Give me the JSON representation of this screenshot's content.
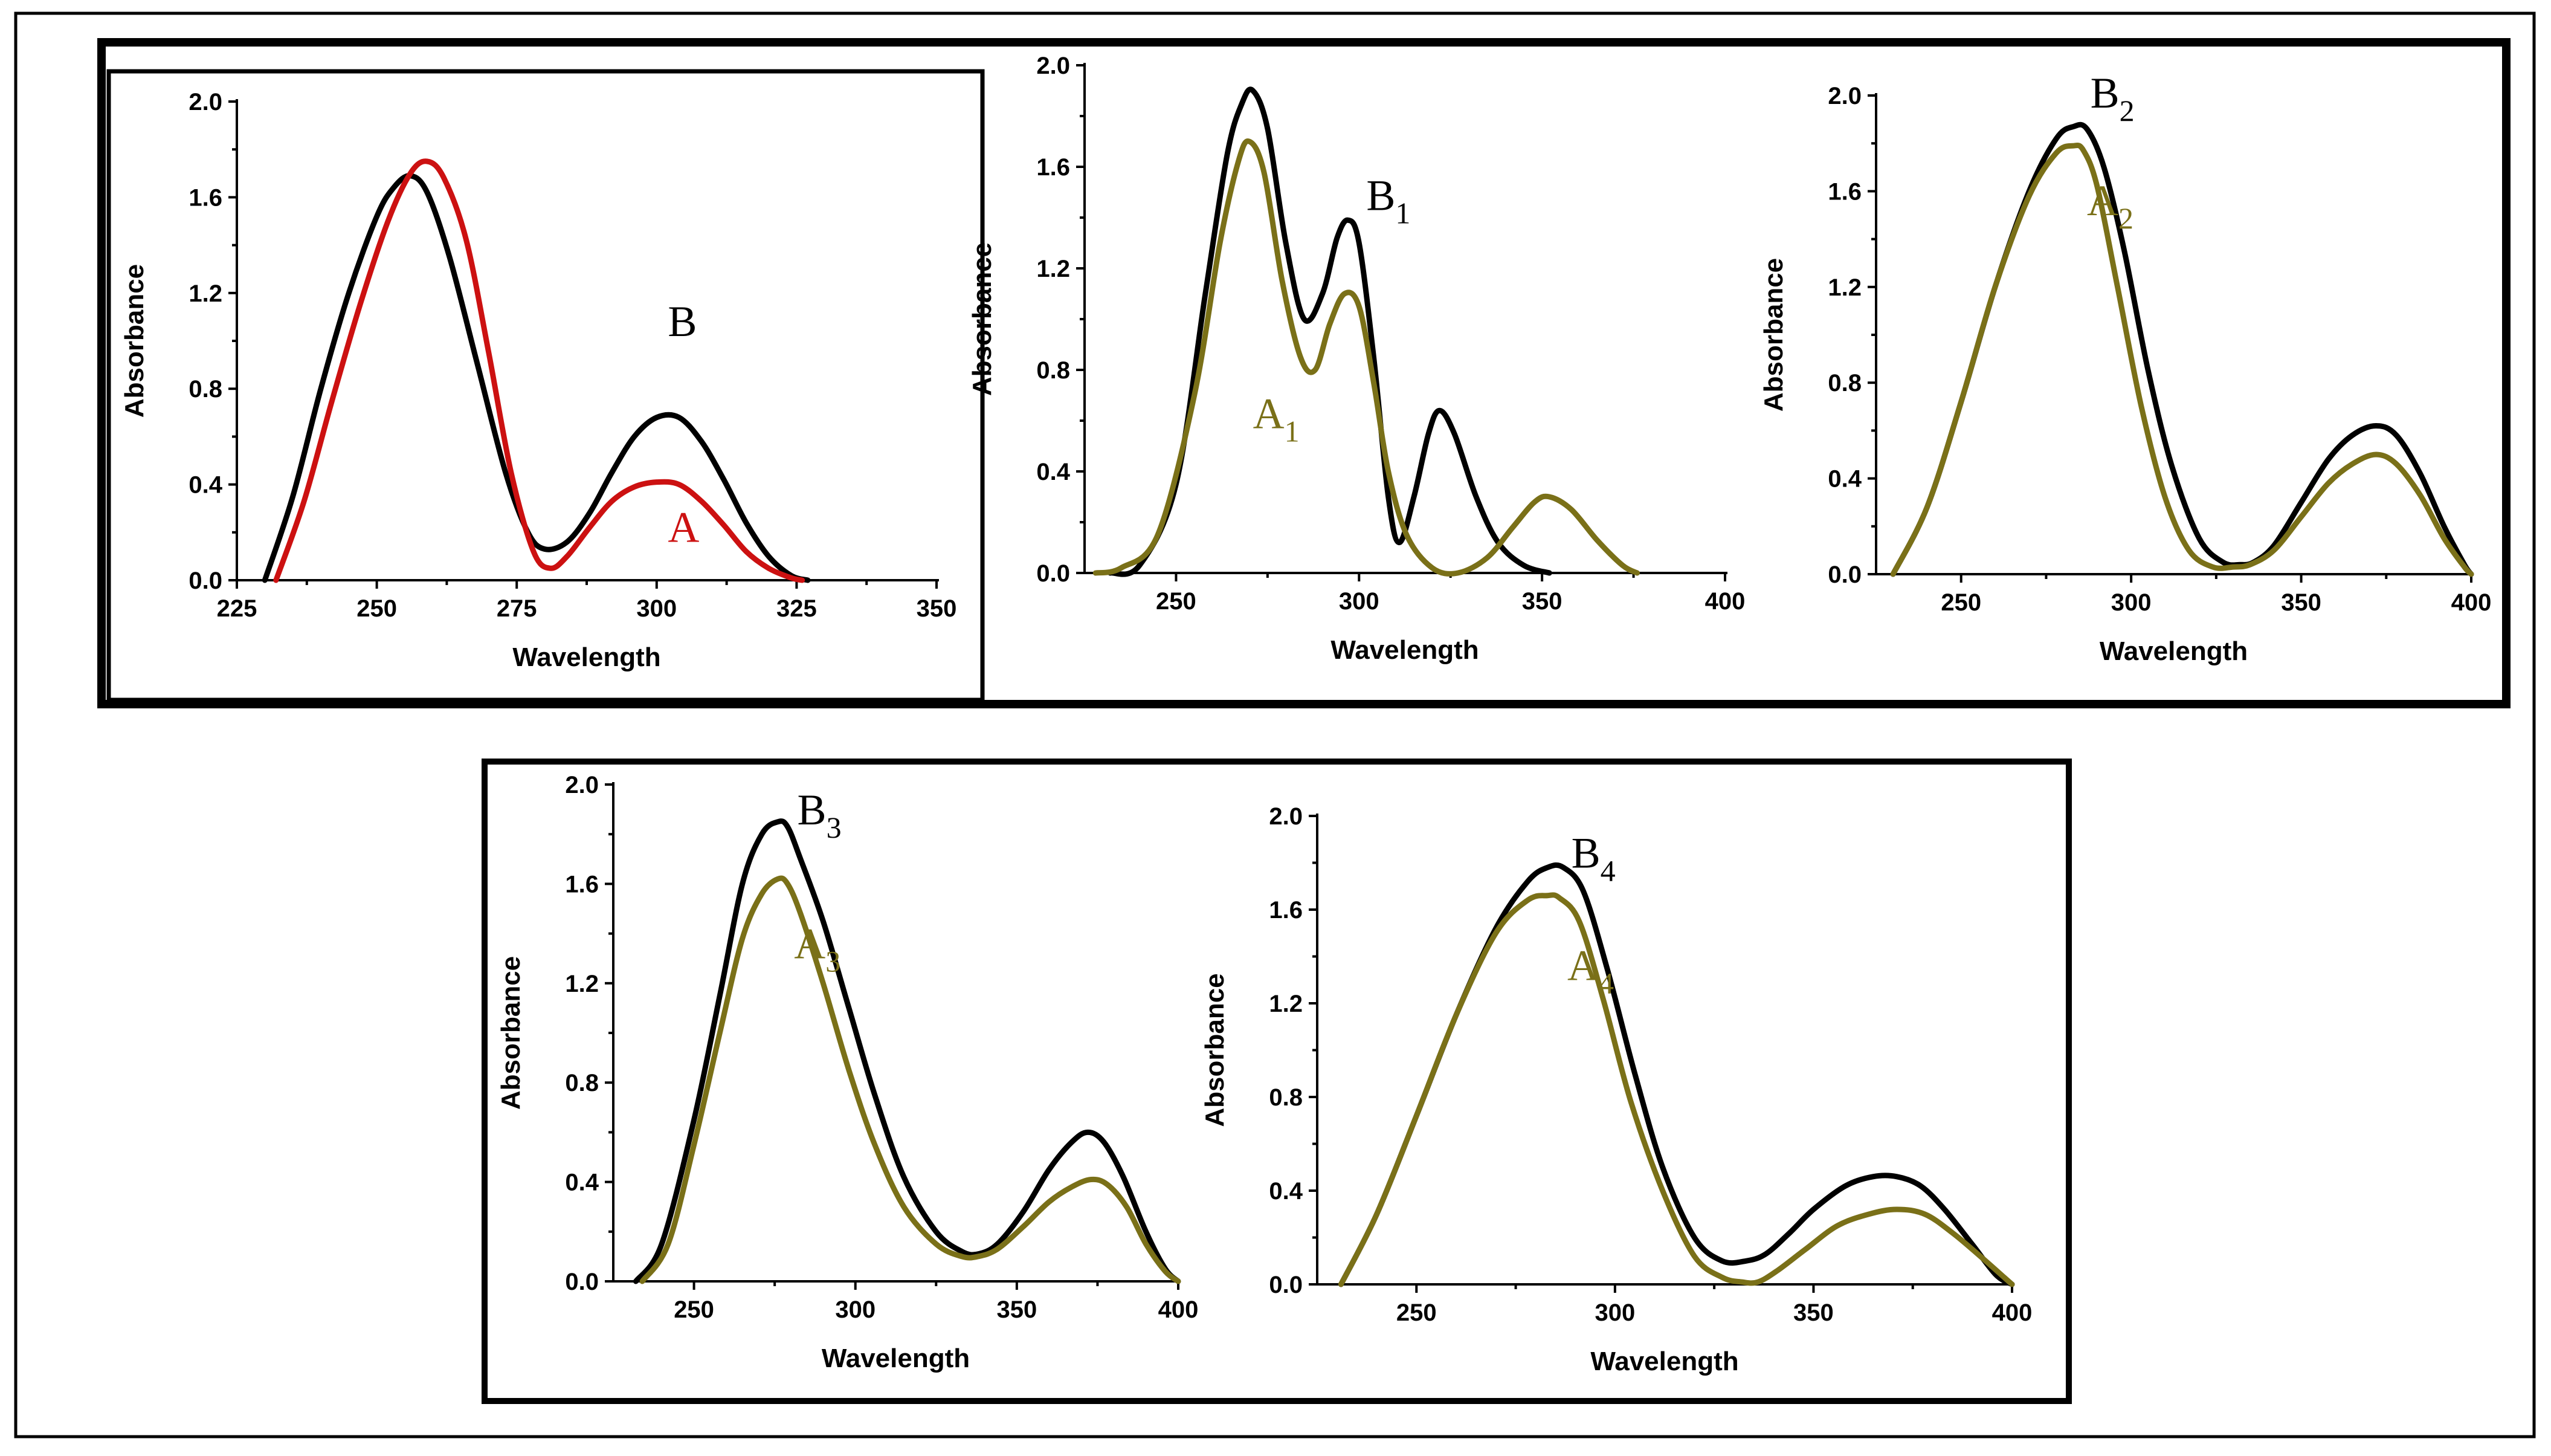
{
  "chart_data": [
    {
      "type": "line",
      "title": "",
      "xlabel": "Wavelength",
      "ylabel": "Absorbance",
      "xlim": [
        225,
        350
      ],
      "ylim": [
        0,
        2
      ],
      "xticks": [
        "225",
        "250",
        "275",
        "300",
        "325",
        "350"
      ],
      "yticks": [
        "0.0",
        "0.4",
        "0.8",
        "1.2",
        "1.6",
        "2.0"
      ],
      "series": [
        {
          "name": "B",
          "label": "B",
          "sub": "",
          "color": "#000000",
          "x": [
            230,
            235,
            240,
            245,
            250,
            253,
            256,
            259,
            263,
            268,
            273,
            277,
            280,
            284,
            288,
            292,
            296,
            300,
            304,
            308,
            312,
            316,
            320,
            324,
            327
          ],
          "y": [
            0.0,
            0.35,
            0.8,
            1.2,
            1.52,
            1.64,
            1.69,
            1.62,
            1.35,
            0.9,
            0.45,
            0.2,
            0.13,
            0.16,
            0.28,
            0.45,
            0.6,
            0.68,
            0.68,
            0.58,
            0.42,
            0.24,
            0.1,
            0.02,
            0.0
          ]
        },
        {
          "name": "A",
          "label": "A",
          "sub": "",
          "color": "#cc1111",
          "x": [
            232,
            237,
            242,
            247,
            252,
            256,
            259,
            262,
            266,
            270,
            274,
            278,
            281,
            284,
            288,
            292,
            296,
            300,
            304,
            308,
            312,
            316,
            320,
            324,
            326
          ],
          "y": [
            0.0,
            0.33,
            0.75,
            1.15,
            1.5,
            1.7,
            1.75,
            1.68,
            1.42,
            0.95,
            0.45,
            0.12,
            0.05,
            0.1,
            0.22,
            0.33,
            0.39,
            0.41,
            0.4,
            0.33,
            0.23,
            0.12,
            0.05,
            0.01,
            0.0
          ]
        }
      ]
    },
    {
      "type": "line",
      "title": "",
      "xlabel": "Wavelength",
      "ylabel": "Absorbance",
      "xlim": [
        225,
        400
      ],
      "ylim": [
        0,
        2
      ],
      "xticks": [
        "250",
        "300",
        "350",
        "400"
      ],
      "yticks": [
        "0.0",
        "0.4",
        "0.8",
        "1.2",
        "1.6",
        "2.0"
      ],
      "series": [
        {
          "name": "B1",
          "label": "B",
          "sub": "1",
          "color": "#000000",
          "x": [
            232,
            240,
            250,
            258,
            264,
            268,
            271,
            275,
            280,
            285,
            290,
            294,
            297,
            300,
            304,
            308,
            311,
            315,
            319,
            322,
            326,
            332,
            338,
            345,
            352
          ],
          "y": [
            0.0,
            0.03,
            0.35,
            1.1,
            1.65,
            1.85,
            1.9,
            1.75,
            1.3,
            1.0,
            1.1,
            1.32,
            1.39,
            1.3,
            0.85,
            0.3,
            0.12,
            0.3,
            0.55,
            0.64,
            0.55,
            0.3,
            0.12,
            0.03,
            0.0
          ]
        },
        {
          "name": "A1",
          "label": "A",
          "sub": "1",
          "color": "#7a7018",
          "x": [
            228,
            235,
            245,
            255,
            262,
            267,
            270,
            274,
            279,
            284,
            288,
            292,
            296,
            300,
            304,
            308,
            313,
            320,
            327,
            335,
            342,
            348,
            352,
            358,
            365,
            372,
            376
          ],
          "y": [
            0.0,
            0.02,
            0.15,
            0.7,
            1.3,
            1.62,
            1.7,
            1.58,
            1.15,
            0.85,
            0.8,
            0.98,
            1.1,
            1.05,
            0.75,
            0.4,
            0.15,
            0.02,
            0.0,
            0.06,
            0.18,
            0.28,
            0.3,
            0.25,
            0.13,
            0.03,
            0.0
          ]
        }
      ]
    },
    {
      "type": "line",
      "title": "",
      "xlabel": "Wavelength",
      "ylabel": "Absorbance",
      "xlim": [
        225,
        400
      ],
      "ylim": [
        0,
        2
      ],
      "xticks": [
        "250",
        "300",
        "350",
        "400"
      ],
      "yticks": [
        "0.0",
        "0.4",
        "0.8",
        "1.2",
        "1.6",
        "2.0"
      ],
      "series": [
        {
          "name": "B2",
          "label": "B",
          "sub": "2",
          "color": "#000000",
          "x": [
            230,
            240,
            250,
            260,
            270,
            278,
            283,
            287,
            292,
            298,
            305,
            312,
            320,
            327,
            332,
            336,
            342,
            350,
            358,
            365,
            372,
            378,
            385,
            392,
            398,
            400
          ],
          "y": [
            0.0,
            0.28,
            0.72,
            1.2,
            1.6,
            1.82,
            1.87,
            1.86,
            1.7,
            1.35,
            0.85,
            0.45,
            0.15,
            0.05,
            0.04,
            0.05,
            0.12,
            0.3,
            0.48,
            0.58,
            0.62,
            0.58,
            0.42,
            0.2,
            0.04,
            0.0
          ]
        },
        {
          "name": "A2",
          "label": "A",
          "sub": "2",
          "color": "#7a7018",
          "x": [
            230,
            240,
            250,
            260,
            270,
            278,
            283,
            286,
            290,
            296,
            303,
            310,
            317,
            324,
            330,
            335,
            342,
            350,
            358,
            365,
            372,
            378,
            385,
            392,
            398,
            400
          ],
          "y": [
            0.0,
            0.28,
            0.72,
            1.2,
            1.58,
            1.76,
            1.79,
            1.77,
            1.62,
            1.2,
            0.7,
            0.32,
            0.1,
            0.03,
            0.03,
            0.04,
            0.1,
            0.24,
            0.38,
            0.46,
            0.5,
            0.46,
            0.33,
            0.15,
            0.03,
            0.0
          ]
        }
      ]
    },
    {
      "type": "line",
      "title": "",
      "xlabel": "Wavelength",
      "ylabel": "Absorbance",
      "xlim": [
        225,
        400
      ],
      "ylim": [
        0,
        2
      ],
      "xticks": [
        "250",
        "300",
        "350",
        "400"
      ],
      "yticks": [
        "0.0",
        "0.4",
        "0.8",
        "1.2",
        "1.6",
        "2.0"
      ],
      "series": [
        {
          "name": "B3",
          "label": "B",
          "sub": "3",
          "color": "#000000",
          "x": [
            232,
            240,
            250,
            258,
            265,
            271,
            276,
            279,
            283,
            290,
            298,
            306,
            315,
            325,
            333,
            338,
            344,
            352,
            360,
            367,
            372,
            377,
            383,
            390,
            396,
            400
          ],
          "y": [
            0.0,
            0.15,
            0.65,
            1.15,
            1.6,
            1.8,
            1.85,
            1.83,
            1.7,
            1.45,
            1.1,
            0.75,
            0.42,
            0.2,
            0.12,
            0.11,
            0.15,
            0.28,
            0.45,
            0.56,
            0.6,
            0.56,
            0.42,
            0.2,
            0.05,
            0.0
          ]
        },
        {
          "name": "A3",
          "label": "A",
          "sub": "3",
          "color": "#7a7018",
          "x": [
            234,
            242,
            250,
            258,
            265,
            271,
            276,
            279,
            283,
            290,
            298,
            306,
            315,
            325,
            333,
            338,
            344,
            352,
            360,
            367,
            373,
            378,
            384,
            390,
            396,
            400
          ],
          "y": [
            0.0,
            0.15,
            0.55,
            1.0,
            1.38,
            1.56,
            1.62,
            1.6,
            1.48,
            1.2,
            0.85,
            0.55,
            0.3,
            0.15,
            0.1,
            0.1,
            0.13,
            0.22,
            0.32,
            0.38,
            0.41,
            0.39,
            0.3,
            0.15,
            0.04,
            0.0
          ]
        }
      ]
    },
    {
      "type": "line",
      "title": "",
      "xlabel": "Wavelength",
      "ylabel": "Absorbance",
      "xlim": [
        225,
        400
      ],
      "ylim": [
        0,
        2
      ],
      "xticks": [
        "250",
        "300",
        "350",
        "400"
      ],
      "yticks": [
        "0.0",
        "0.4",
        "0.8",
        "1.2",
        "1.6",
        "2.0"
      ],
      "series": [
        {
          "name": "B4",
          "label": "B",
          "sub": "4",
          "color": "#000000",
          "x": [
            231,
            240,
            250,
            260,
            270,
            278,
            283,
            287,
            292,
            298,
            305,
            312,
            320,
            327,
            333,
            338,
            344,
            350,
            358,
            365,
            371,
            377,
            383,
            390,
            396,
            400
          ],
          "y": [
            0.0,
            0.3,
            0.72,
            1.15,
            1.52,
            1.72,
            1.78,
            1.78,
            1.68,
            1.35,
            0.9,
            0.5,
            0.2,
            0.1,
            0.1,
            0.13,
            0.22,
            0.32,
            0.42,
            0.46,
            0.46,
            0.42,
            0.32,
            0.17,
            0.04,
            0.0
          ]
        },
        {
          "name": "A4",
          "label": "A",
          "sub": "4",
          "color": "#7a7018",
          "x": [
            231,
            240,
            250,
            260,
            270,
            278,
            283,
            286,
            291,
            297,
            304,
            312,
            320,
            327,
            332,
            336,
            341,
            348,
            356,
            364,
            371,
            378,
            385,
            392,
            398,
            400
          ],
          "y": [
            0.0,
            0.3,
            0.72,
            1.15,
            1.5,
            1.64,
            1.66,
            1.65,
            1.55,
            1.22,
            0.78,
            0.4,
            0.12,
            0.03,
            0.01,
            0.01,
            0.06,
            0.15,
            0.25,
            0.3,
            0.32,
            0.3,
            0.22,
            0.12,
            0.03,
            0.0
          ]
        }
      ]
    }
  ]
}
